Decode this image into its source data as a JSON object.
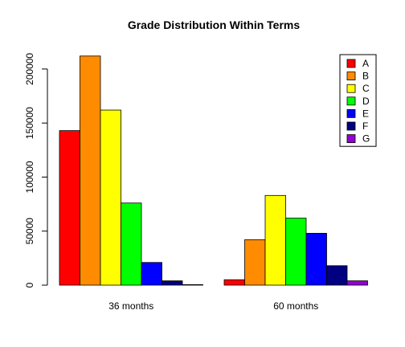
{
  "chart_data": {
    "type": "bar",
    "title": "Grade Distribution Within Terms",
    "xlabel": "",
    "ylabel": "",
    "categories": [
      "36 months",
      "60 months"
    ],
    "series": [
      {
        "name": "A",
        "color": "#ff0000",
        "values": [
          143000,
          5000
        ]
      },
      {
        "name": "B",
        "color": "#ff8c00",
        "values": [
          212000,
          42000
        ]
      },
      {
        "name": "C",
        "color": "#ffff00",
        "values": [
          162000,
          83000
        ]
      },
      {
        "name": "D",
        "color": "#00ff00",
        "values": [
          76000,
          62000
        ]
      },
      {
        "name": "E",
        "color": "#0000ff",
        "values": [
          21000,
          48000
        ]
      },
      {
        "name": "F",
        "color": "#000080",
        "values": [
          4000,
          18000
        ]
      },
      {
        "name": "G",
        "color": "#9400d3",
        "values": [
          500,
          4000
        ]
      }
    ],
    "ylim": [
      0,
      220000
    ],
    "yticks": [
      0,
      50000,
      100000,
      150000,
      200000
    ],
    "ytick_labels": [
      "0",
      "50000",
      "100000",
      "150000",
      "200000"
    ],
    "legend_position": "top-right",
    "grid": false
  }
}
